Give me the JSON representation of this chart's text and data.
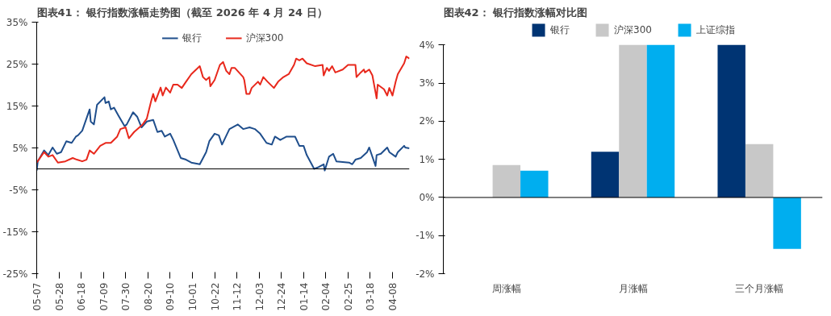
{
  "chart_data": [
    {
      "type": "line",
      "title": "图表41：  银行指数涨幅走势图（截至 2026 年 4 月 24 日）",
      "legend": "top",
      "grid": false,
      "xlim": [
        "2025-05-07",
        "2026-04-24"
      ],
      "xticks": [
        {
          "value": "2025-05-07",
          "label": "05-07"
        },
        {
          "value": "2025-05-28",
          "label": "05-28"
        },
        {
          "value": "2025-06-18",
          "label": "06-18"
        },
        {
          "value": "2025-07-09",
          "label": "07-09"
        },
        {
          "value": "2025-07-30",
          "label": "07-30"
        },
        {
          "value": "2025-08-20",
          "label": "08-20"
        },
        {
          "value": "2025-09-10",
          "label": "09-10"
        },
        {
          "value": "2025-10-01",
          "label": "10-01"
        },
        {
          "value": "2025-10-22",
          "label": "10-22"
        },
        {
          "value": "2025-11-12",
          "label": "11-12"
        },
        {
          "value": "2025-12-03",
          "label": "12-03"
        },
        {
          "value": "2025-12-24",
          "label": "12-24"
        },
        {
          "value": "2026-01-14",
          "label": "01-14"
        },
        {
          "value": "2026-02-04",
          "label": "02-04"
        },
        {
          "value": "2026-02-25",
          "label": "02-25"
        },
        {
          "value": "2026-03-18",
          "label": "03-18"
        },
        {
          "value": "2026-04-08",
          "label": "04-08"
        }
      ],
      "ylim": [
        -25,
        35
      ],
      "yticks": [
        {
          "value": -25,
          "label": "-25%"
        },
        {
          "value": -15,
          "label": "-15%"
        },
        {
          "value": -5,
          "label": "-5%"
        },
        {
          "value": 5,
          "label": "5%"
        },
        {
          "value": 15,
          "label": "15%"
        },
        {
          "value": 25,
          "label": "25%"
        },
        {
          "value": 35,
          "label": "35%"
        }
      ],
      "ref_lines": [
        {
          "axis": "y",
          "value": 0,
          "color": "#000000"
        }
      ],
      "series": [
        {
          "name": "银行",
          "color": "#1f4e8c",
          "x": [
            "2025-05-07",
            "2025-05-08",
            "2025-05-14",
            "2025-05-18",
            "2025-05-22",
            "2025-05-26",
            "2025-05-30",
            "2025-06-04",
            "2025-06-09",
            "2025-06-13",
            "2025-06-15",
            "2025-06-19",
            "2025-06-26",
            "2025-06-27",
            "2025-06-30",
            "2025-07-03",
            "2025-07-10",
            "2025-07-11",
            "2025-07-14",
            "2025-07-16",
            "2025-07-19",
            "2025-07-23",
            "2025-07-29",
            "2025-07-31",
            "2025-08-06",
            "2025-08-10",
            "2025-08-14",
            "2025-08-19",
            "2025-08-25",
            "2025-08-29",
            "2025-09-02",
            "2025-09-05",
            "2025-09-10",
            "2025-09-13",
            "2025-09-20",
            "2025-09-25",
            "2025-09-30",
            "2025-10-08",
            "2025-10-14",
            "2025-10-17",
            "2025-10-22",
            "2025-10-26",
            "2025-10-29",
            "2025-11-05",
            "2025-11-13",
            "2025-11-18",
            "2025-11-24",
            "2025-11-29",
            "2025-12-04",
            "2025-12-10",
            "2025-12-15",
            "2025-12-18",
            "2025-12-23",
            "2025-12-29",
            "2026-01-06",
            "2026-01-10",
            "2026-01-14",
            "2026-01-17",
            "2026-01-24",
            "2026-01-28",
            "2026-02-02",
            "2026-02-03",
            "2026-02-07",
            "2026-02-11",
            "2026-02-14",
            "2026-02-26",
            "2026-03-01",
            "2026-03-04",
            "2026-03-09",
            "2026-03-15",
            "2026-03-17",
            "2026-03-23",
            "2026-03-24",
            "2026-03-28",
            "2026-04-03",
            "2026-04-05",
            "2026-04-11",
            "2026-04-13",
            "2026-04-19",
            "2026-04-20",
            "2026-04-24"
          ],
          "values": [
            -0.4,
            1.8,
            4.4,
            3.3,
            5.1,
            3.6,
            4.0,
            6.6,
            6.2,
            7.7,
            8.0,
            9.1,
            14.2,
            11.3,
            10.6,
            15.3,
            17.1,
            15.7,
            16.1,
            14.2,
            14.6,
            12.8,
            10.2,
            10.6,
            13.5,
            12.4,
            9.9,
            11.3,
            11.7,
            8.8,
            9.1,
            7.7,
            8.4,
            6.9,
            2.6,
            2.2,
            1.5,
            1.1,
            4.0,
            6.6,
            8.4,
            8.0,
            5.8,
            9.5,
            10.6,
            9.5,
            9.9,
            9.5,
            8.4,
            6.2,
            5.8,
            7.7,
            6.9,
            7.7,
            7.7,
            5.5,
            5.5,
            3.3,
            0.0,
            0.4,
            1.1,
            -0.4,
            2.9,
            3.6,
            1.8,
            1.5,
            1.1,
            2.2,
            2.6,
            4.0,
            5.1,
            0.7,
            3.3,
            3.6,
            5.1,
            4.0,
            2.9,
            4.0,
            5.5,
            5.1,
            4.9
          ]
        },
        {
          "name": "沪深300",
          "color": "#e8281c",
          "x": [
            "2025-05-07",
            "2025-05-14",
            "2025-05-18",
            "2025-05-22",
            "2025-05-27",
            "2025-06-03",
            "2025-06-10",
            "2025-06-14",
            "2025-06-19",
            "2025-06-23",
            "2025-06-26",
            "2025-06-30",
            "2025-07-06",
            "2025-07-11",
            "2025-07-16",
            "2025-07-22",
            "2025-07-25",
            "2025-07-30",
            "2025-08-02",
            "2025-08-07",
            "2025-08-15",
            "2025-08-19",
            "2025-08-23",
            "2025-08-25",
            "2025-08-27",
            "2025-09-01",
            "2025-09-03",
            "2025-09-06",
            "2025-09-10",
            "2025-09-13",
            "2025-09-17",
            "2025-09-21",
            "2025-09-25",
            "2025-09-30",
            "2025-10-08",
            "2025-10-11",
            "2025-10-14",
            "2025-10-17",
            "2025-10-18",
            "2025-10-22",
            "2025-10-27",
            "2025-10-30",
            "2025-11-02",
            "2025-11-05",
            "2025-11-07",
            "2025-11-10",
            "2025-11-14",
            "2025-11-18",
            "2025-11-19",
            "2025-11-21",
            "2025-11-24",
            "2025-11-26",
            "2025-12-02",
            "2025-12-04",
            "2025-12-07",
            "2025-12-11",
            "2025-12-17",
            "2025-12-21",
            "2025-12-26",
            "2025-12-31",
            "2026-01-05",
            "2026-01-07",
            "2026-01-10",
            "2026-01-13",
            "2026-01-17",
            "2026-01-25",
            "2026-02-01",
            "2026-02-02",
            "2026-02-05",
            "2026-02-07",
            "2026-02-10",
            "2026-02-13",
            "2026-02-20",
            "2026-02-25",
            "2026-03-04",
            "2026-03-05",
            "2026-03-09",
            "2026-03-12",
            "2026-03-13",
            "2026-03-17",
            "2026-03-20",
            "2026-03-23",
            "2026-03-24",
            "2026-03-25",
            "2026-03-31",
            "2026-04-03",
            "2026-04-05",
            "2026-04-08",
            "2026-04-11",
            "2026-04-13",
            "2026-04-19",
            "2026-04-21",
            "2026-04-24"
          ],
          "values": [
            1.5,
            4.0,
            2.9,
            3.3,
            1.5,
            1.8,
            2.6,
            2.2,
            1.8,
            2.2,
            4.4,
            3.6,
            5.5,
            6.2,
            6.2,
            7.7,
            9.5,
            9.9,
            7.3,
            8.8,
            10.6,
            12.0,
            16.1,
            17.9,
            16.1,
            19.4,
            17.5,
            19.4,
            18.2,
            20.1,
            20.1,
            19.3,
            20.8,
            22.6,
            24.5,
            21.9,
            21.2,
            21.9,
            19.7,
            21.2,
            24.8,
            25.5,
            23.4,
            22.6,
            24.1,
            24.1,
            23.0,
            21.9,
            21.2,
            17.9,
            17.9,
            19.3,
            20.8,
            20.1,
            21.9,
            20.8,
            19.3,
            20.8,
            21.9,
            22.6,
            24.8,
            26.3,
            25.9,
            26.3,
            25.2,
            24.5,
            24.8,
            22.3,
            24.1,
            23.4,
            24.5,
            23.0,
            23.7,
            24.8,
            24.8,
            21.9,
            23.0,
            23.7,
            23.0,
            23.7,
            22.3,
            18.2,
            16.8,
            20.1,
            19.0,
            17.5,
            19.3,
            17.5,
            20.8,
            22.6,
            25.2,
            26.8,
            26.3
          ]
        }
      ]
    },
    {
      "type": "bar",
      "title": "图表42：  银行指数涨幅对比图",
      "legend": "top",
      "grid": false,
      "categories": [
        "周涨幅",
        "月涨幅",
        "三个月涨幅"
      ],
      "ylim": [
        -2,
        4
      ],
      "yticks": [
        {
          "value": -2,
          "label": "-2%"
        },
        {
          "value": -1,
          "label": "-1%"
        },
        {
          "value": 0,
          "label": "0%"
        },
        {
          "value": 1,
          "label": "1%"
        },
        {
          "value": 2,
          "label": "2%"
        },
        {
          "value": 3,
          "label": "3%"
        },
        {
          "value": 4,
          "label": "4%"
        }
      ],
      "ref_lines": [
        {
          "axis": "y",
          "value": 0,
          "color": "#000000"
        }
      ],
      "series": [
        {
          "name": "银行",
          "color": "#003473",
          "values": [
            null,
            1.2,
            4.0
          ]
        },
        {
          "name": "沪深300",
          "color": "#c8c8c8",
          "values": [
            0.85,
            4.0,
            1.4
          ]
        },
        {
          "name": "上证综指",
          "color": "#00aeef",
          "values": [
            0.7,
            4.0,
            -1.35
          ]
        }
      ]
    }
  ]
}
